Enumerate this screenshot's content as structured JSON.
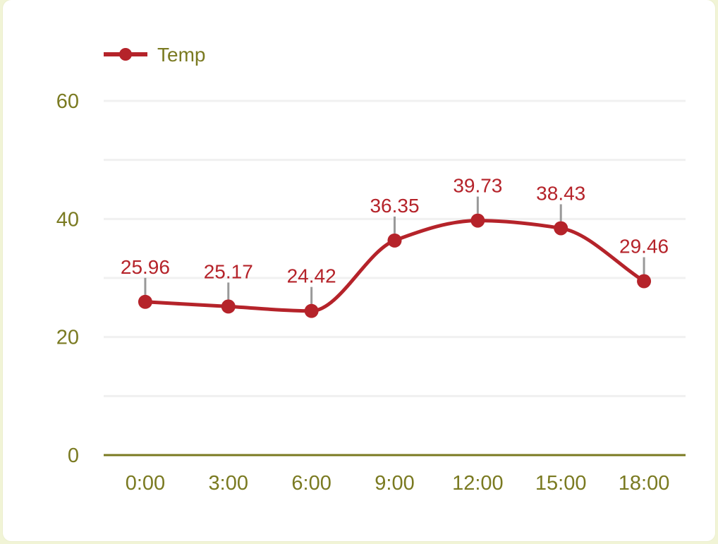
{
  "chart_data": {
    "type": "line",
    "categories": [
      "0:00",
      "3:00",
      "6:00",
      "9:00",
      "12:00",
      "15:00",
      "18:00"
    ],
    "series": [
      {
        "name": "Temp",
        "values": [
          25.96,
          25.17,
          24.42,
          36.35,
          39.73,
          38.43,
          29.46
        ]
      }
    ],
    "data_labels": [
      "25.96",
      "25.17",
      "24.42",
      "36.35",
      "39.73",
      "38.43",
      "29.46"
    ],
    "yticks": [
      "0",
      "20",
      "40",
      "60"
    ],
    "ylim": [
      0,
      60
    ],
    "grid": true,
    "legend_position": "top-left",
    "colors": {
      "series": "#b5232a",
      "axis": "#7a7a21",
      "grid": "#f0f0f0",
      "leader": "#999999"
    }
  }
}
